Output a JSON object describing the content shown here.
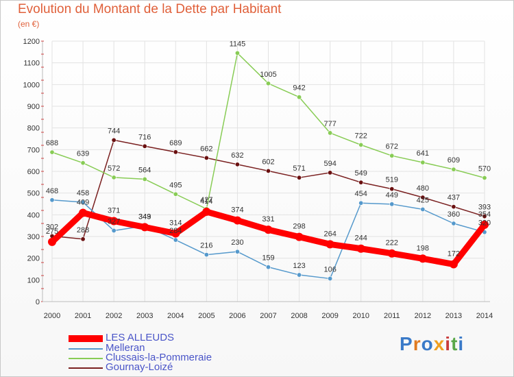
{
  "title": "Evolution du Montant de la Dette par Habitant",
  "unit": "(en €)",
  "logo": "Proxiti",
  "chart_data": {
    "type": "line",
    "x": [
      "2000",
      "2001",
      "2002",
      "2003",
      "2004",
      "2005",
      "2006",
      "2007",
      "2008",
      "2009",
      "2010",
      "2011",
      "2012",
      "2013",
      "2014"
    ],
    "ylim": [
      0,
      1200
    ],
    "yticks": [
      0,
      100,
      200,
      300,
      400,
      500,
      600,
      700,
      800,
      900,
      1000,
      1100,
      1200
    ],
    "grid": true,
    "legend": "bottom-left",
    "series": [
      {
        "name": "Gournay-Loizé",
        "color": "#7a2020",
        "values": [
          302,
          288,
          744,
          716,
          689,
          662,
          632,
          602,
          571,
          594,
          549,
          519,
          480,
          437,
          393
        ]
      },
      {
        "name": "Clussais-la-Pommeraie",
        "color": "#88cc55",
        "values": [
          688,
          639,
          572,
          564,
          495,
          427,
          1145,
          1005,
          942,
          777,
          722,
          672,
          641,
          609,
          570
        ]
      },
      {
        "name": "Melleran",
        "color": "#5599cc",
        "values": [
          468,
          458,
          327,
          349,
          284,
          216,
          230,
          159,
          123,
          106,
          454,
          449,
          425,
          360,
          320
        ]
      },
      {
        "name": "LES ALLEUDS",
        "color": "#ff0000",
        "values": [
          275,
          409,
          371,
          343,
          314,
          414,
          374,
          331,
          298,
          264,
          244,
          222,
          198,
          172,
          354
        ]
      }
    ]
  }
}
